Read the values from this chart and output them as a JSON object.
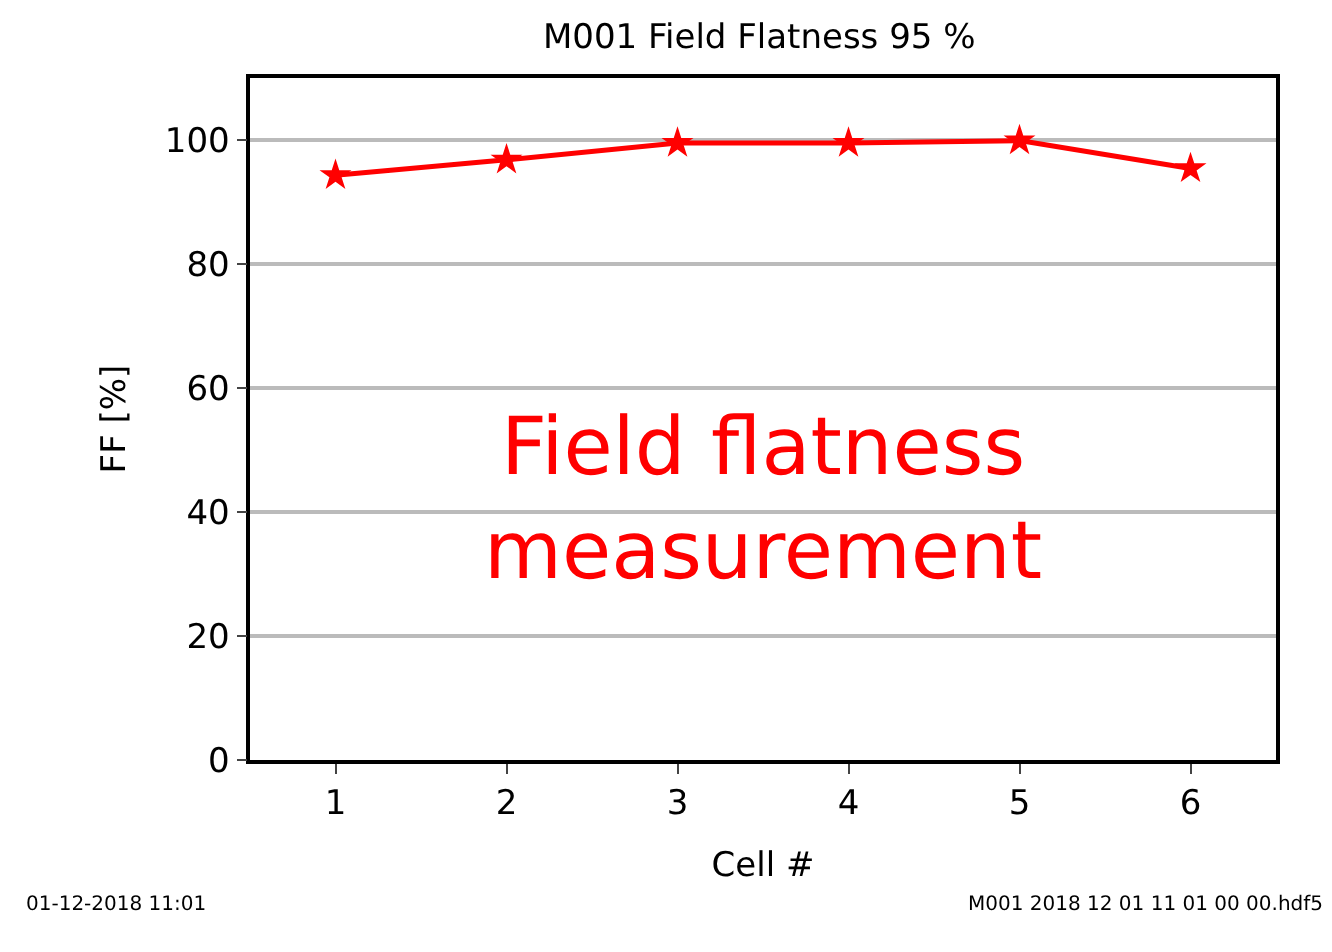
{
  "chart_data": {
    "type": "line",
    "title": "M001 Field Flatness 95 %",
    "xlabel": "Cell #",
    "ylabel": "FF [%]",
    "x": [
      1,
      2,
      3,
      4,
      5,
      6
    ],
    "series": [
      {
        "color": "#ff0000",
        "values": [
          94.3,
          96.8,
          99.5,
          99.5,
          99.9,
          95.4
        ]
      }
    ],
    "xlim": [
      0.5,
      6.5
    ],
    "xticks": [
      1,
      2,
      3,
      4,
      5,
      6
    ],
    "ylim": [
      0,
      110
    ],
    "yticks": [
      0,
      20,
      40,
      60,
      80,
      100
    ],
    "grid": "y",
    "marker": "star",
    "line_style": "solid",
    "annotations": [
      "Field flatness\nmeasurement",
      "01-12-2018 11:01",
      "M001 2018 12 01 11 01 00 00.hdf5"
    ]
  }
}
